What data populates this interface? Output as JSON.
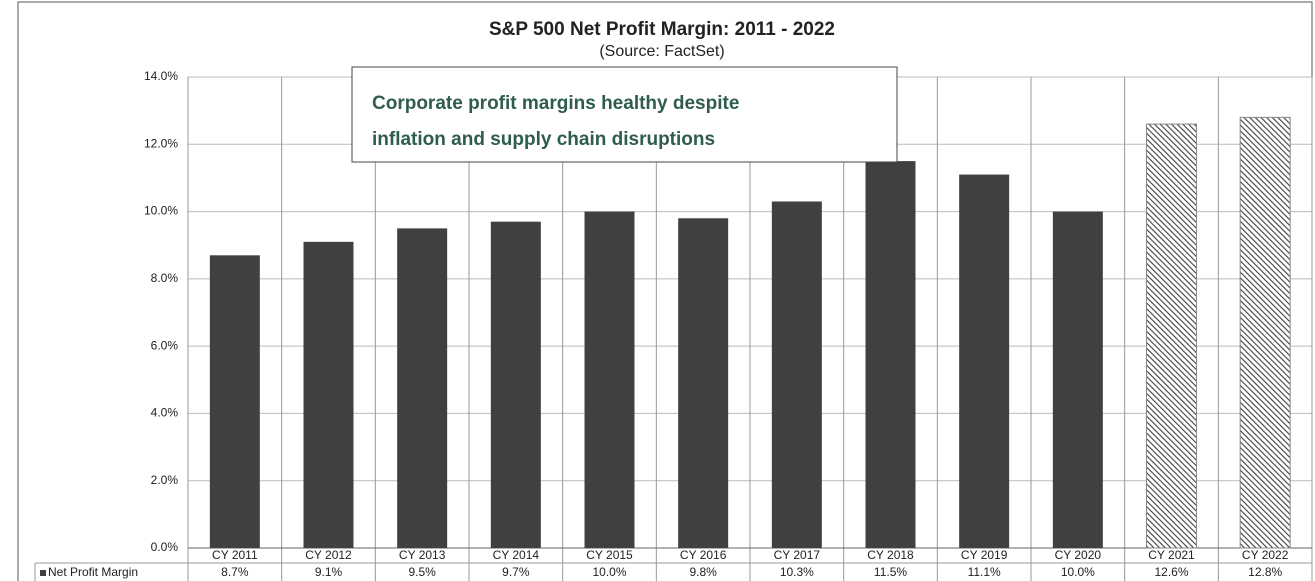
{
  "chart_data": {
    "type": "bar",
    "title": "S&P 500 Net Profit Margin: 2011 - 2022",
    "subtitle": "(Source: FactSet)",
    "annotation": [
      "Corporate profit margins healthy despite",
      "inflation and supply chain disruptions"
    ],
    "categories": [
      "CY 2011",
      "CY 2012",
      "CY 2013",
      "CY 2014",
      "CY 2015",
      "CY 2016",
      "CY 2017",
      "CY 2018",
      "CY 2019",
      "CY 2020",
      "CY 2021",
      "CY 2022"
    ],
    "series": [
      {
        "name": "Net Profit Margin",
        "color": "#404040",
        "values": [
          8.7,
          9.1,
          9.5,
          9.7,
          10.0,
          9.8,
          10.3,
          11.5,
          11.1,
          10.0,
          12.6,
          12.8
        ],
        "value_labels": [
          "8.7%",
          "9.1%",
          "9.5%",
          "9.7%",
          "10.0%",
          "9.8%",
          "10.3%",
          "11.5%",
          "11.1%",
          "10.0%",
          "12.6%",
          "12.8%"
        ],
        "patterns": [
          "solid",
          "solid",
          "solid",
          "solid",
          "solid",
          "solid",
          "solid",
          "solid",
          "solid",
          "solid",
          "hatch",
          "hatch"
        ]
      }
    ],
    "ylim": [
      0,
      14
    ],
    "yticks": [
      {
        "value": 0,
        "label": "0.0%"
      },
      {
        "value": 2,
        "label": "2.0%"
      },
      {
        "value": 4,
        "label": "4.0%"
      },
      {
        "value": 6,
        "label": "6.0%"
      },
      {
        "value": 8,
        "label": "8.0%"
      },
      {
        "value": 10,
        "label": "10.0%"
      },
      {
        "value": 12,
        "label": "12.0%"
      },
      {
        "value": 14,
        "label": "14.0%"
      }
    ],
    "grid": true
  }
}
